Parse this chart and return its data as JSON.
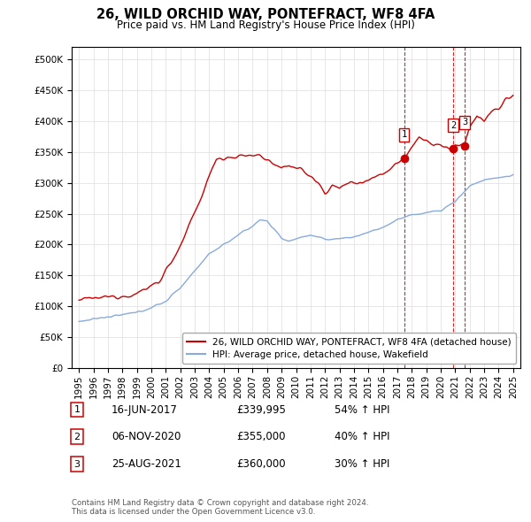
{
  "title": "26, WILD ORCHID WAY, PONTEFRACT, WF8 4FA",
  "subtitle": "Price paid vs. HM Land Registry's House Price Index (HPI)",
  "legend_line1": "26, WILD ORCHID WAY, PONTEFRACT, WF8 4FA (detached house)",
  "legend_line2": "HPI: Average price, detached house, Wakefield",
  "transactions": [
    {
      "num": 1,
      "date": "16-JUN-2017",
      "price": 339995,
      "pct": "54%",
      "dir": "↑",
      "x": 2017.46
    },
    {
      "num": 2,
      "date": "06-NOV-2020",
      "price": 355000,
      "pct": "40%",
      "dir": "↑",
      "x": 2020.85
    },
    {
      "num": 3,
      "date": "25-AUG-2021",
      "price": 360000,
      "pct": "30%",
      "dir": "↑",
      "x": 2021.65
    }
  ],
  "footer": "Contains HM Land Registry data © Crown copyright and database right 2024.\nThis data is licensed under the Open Government Licence v3.0.",
  "red_color": "#cc0000",
  "blue_color": "#88aadd",
  "vline_color": "#cc0000",
  "ylim": [
    0,
    520000
  ],
  "yticks": [
    0,
    50000,
    100000,
    150000,
    200000,
    250000,
    300000,
    350000,
    400000,
    450000,
    500000
  ],
  "xlim": [
    1994.5,
    2025.5
  ],
  "xticks": [
    1995,
    1996,
    1997,
    1998,
    1999,
    2000,
    2001,
    2002,
    2003,
    2004,
    2005,
    2006,
    2007,
    2008,
    2009,
    2010,
    2011,
    2012,
    2013,
    2014,
    2015,
    2016,
    2017,
    2018,
    2019,
    2020,
    2021,
    2022,
    2023,
    2024,
    2025
  ]
}
